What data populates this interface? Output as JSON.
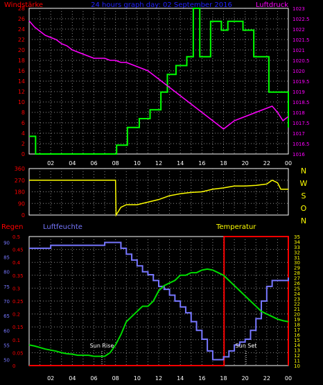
{
  "colors": {
    "background": "#000000",
    "frame": "#ffffff",
    "grid": "#8c8c8c",
    "wind": "#00ff00",
    "pressure": "#ff00ff",
    "direction": "#ffff00",
    "rain": "#ff0000",
    "humidity": "#7777ff",
    "temperature": "#00dd00",
    "sun_marker": "#ffffff",
    "title": "#2222ff",
    "compass": "#ffff00"
  },
  "header": {
    "wind_label": "Windstärke",
    "title": "24 hours graph day:  02 September 2016",
    "pressure_label": "Luftdruck"
  },
  "compass": {
    "letters": [
      "N",
      "W",
      "S",
      "O",
      "N"
    ]
  },
  "bottom_labels": {
    "rain": "Regen",
    "humidity": "Luftfeuchte",
    "temperature": "Temperatur"
  },
  "annotations": {
    "sun_rise": "Sun Rise",
    "sun_set": "Sun Set"
  },
  "chart_data": [
    {
      "type": "line",
      "xlabels": [
        "02",
        "04",
        "06",
        "08",
        "10",
        "12",
        "14",
        "16",
        "18",
        "20",
        "22",
        "00"
      ],
      "left_axis": {
        "ticks": [
          "28",
          "26",
          "24",
          "22",
          "20",
          "18",
          "16",
          "14",
          "12",
          "10",
          "8",
          "6",
          "4",
          "2",
          "0"
        ],
        "ylim": [
          0,
          28
        ]
      },
      "right_axis": {
        "ticks": [
          "1023",
          "1022.5",
          "1022",
          "1021.5",
          "1021",
          "1020.5",
          "1020",
          "1019.5",
          "1019",
          "1018.5",
          "1018",
          "1017.5",
          "1017",
          "1016.5",
          "1016"
        ],
        "ylim": [
          1016,
          1023
        ]
      },
      "grid": true,
      "series": [
        {
          "name": "Windstärke",
          "axis": "left",
          "step": true,
          "x": [
            0,
            0.2,
            0.6,
            8.0,
            8.1,
            9.0,
            9.1,
            10.0,
            10.2,
            11.0,
            11.2,
            12.0,
            12.2,
            12.6,
            12.8,
            13.4,
            13.6,
            14.4,
            14.6,
            15.0,
            15.2,
            15.6,
            15.8,
            16.6,
            16.8,
            17.6,
            17.8,
            18.2,
            18.4,
            19.6,
            19.8,
            20.6,
            20.8,
            21.8,
            22.2,
            23.9,
            24
          ],
          "y": [
            3.4,
            3.4,
            0,
            0,
            1.7,
            1.7,
            5.1,
            5.1,
            6.8,
            6.8,
            8.5,
            8.5,
            11.9,
            11.9,
            15.3,
            15.3,
            17.0,
            17.0,
            18.7,
            18.7,
            28,
            28,
            18.7,
            18.7,
            25.5,
            25.5,
            23.8,
            23.8,
            25.5,
            25.5,
            23.8,
            23.8,
            18.7,
            18.7,
            11.9,
            11.9,
            5.1
          ]
        },
        {
          "name": "Luftdruck",
          "axis": "right",
          "x": [
            0,
            0.5,
            1,
            1.5,
            2,
            2.5,
            3,
            3.5,
            4,
            4.5,
            5,
            5.5,
            6,
            6.5,
            7,
            7.5,
            8,
            8.5,
            9,
            9.5,
            10,
            10.5,
            11,
            11.5,
            12,
            12.5,
            13,
            13.5,
            14,
            14.5,
            15,
            15.5,
            16,
            16.5,
            17,
            17.5,
            18,
            18.5,
            19,
            19.5,
            20,
            20.5,
            21,
            21.5,
            22,
            22.5,
            23,
            23.5,
            24
          ],
          "y": [
            1022.4,
            1022.1,
            1021.9,
            1021.7,
            1021.6,
            1021.5,
            1021.3,
            1021.2,
            1021.0,
            1020.9,
            1020.8,
            1020.7,
            1020.6,
            1020.6,
            1020.6,
            1020.5,
            1020.5,
            1020.4,
            1020.4,
            1020.3,
            1020.2,
            1020.1,
            1020.0,
            1019.8,
            1019.6,
            1019.4,
            1019.2,
            1019.0,
            1018.8,
            1018.6,
            1018.4,
            1018.2,
            1018.0,
            1017.8,
            1017.6,
            1017.4,
            1017.2,
            1017.4,
            1017.6,
            1017.7,
            1017.8,
            1017.9,
            1018.0,
            1018.1,
            1018.2,
            1018.3,
            1018.0,
            1017.6,
            1017.8
          ]
        }
      ]
    },
    {
      "type": "line",
      "xlabels": [
        "02",
        "04",
        "06",
        "08",
        "10",
        "12",
        "14",
        "16",
        "18",
        "20",
        "22",
        "00"
      ],
      "left_axis": {
        "ticks": [
          "360",
          "270",
          "180",
          "90",
          "0"
        ],
        "ylim": [
          0,
          360
        ]
      },
      "grid": true,
      "series": [
        {
          "name": "Windrichtung",
          "axis": "left",
          "x": [
            0,
            0.2,
            8.0,
            8.05,
            8.5,
            9.0,
            10.0,
            11.0,
            12.0,
            13.0,
            14.0,
            15.0,
            16.0,
            17.0,
            18.0,
            19.0,
            20.0,
            21.0,
            22.0,
            22.5,
            23.0,
            23.3,
            24
          ],
          "y": [
            270,
            270,
            270,
            0,
            60,
            80,
            80,
            100,
            120,
            150,
            165,
            175,
            180,
            200,
            210,
            225,
            225,
            230,
            240,
            270,
            250,
            200,
            200
          ]
        }
      ]
    },
    {
      "type": "line",
      "xlabels": [
        "02",
        "04",
        "06",
        "08",
        "10",
        "12",
        "14",
        "16",
        "18",
        "20",
        "22",
        "00"
      ],
      "left_axis_rain": {
        "ticks": [
          "0.5",
          "0.45",
          "0.4",
          "0.35",
          "0.3",
          "0.25",
          "0.2",
          "0.15",
          "0.1",
          "0.05",
          "0"
        ],
        "ylim": [
          0,
          0.5
        ]
      },
      "left_axis_humidity": {
        "ticks": [
          "90",
          "85",
          "80",
          "75",
          "70",
          "65",
          "60",
          "55",
          "50"
        ],
        "ylim": [
          48,
          92
        ]
      },
      "right_axis": {
        "ticks": [
          "35",
          "34",
          "33",
          "32",
          "31",
          "30",
          "29",
          "28",
          "27",
          "26",
          "25",
          "24",
          "23",
          "22",
          "21",
          "20",
          "19",
          "18",
          "17",
          "16",
          "15",
          "14",
          "13",
          "12",
          "11",
          "10"
        ],
        "ylim": [
          10,
          35
        ]
      },
      "grid": true,
      "series": [
        {
          "name": "Regen",
          "axis": "rain",
          "step": true,
          "x": [
            0,
            18.0,
            18.05,
            23.9,
            24
          ],
          "y": [
            0,
            0,
            0.5,
            0.5,
            0
          ]
        },
        {
          "name": "Luftfeuchte",
          "axis": "humidity",
          "step": true,
          "x": [
            0,
            1.0,
            2.0,
            3.0,
            4.0,
            5.0,
            6.0,
            6.5,
            7.0,
            7.5,
            8.0,
            8.5,
            9.0,
            9.5,
            10.0,
            10.5,
            11.0,
            11.5,
            12.0,
            12.5,
            13.0,
            13.5,
            14.0,
            14.5,
            15.0,
            15.5,
            16.0,
            16.5,
            17.0,
            17.5,
            18.0,
            18.5,
            19.0,
            19.5,
            20.0,
            20.5,
            21.0,
            21.5,
            22.0,
            22.5,
            23.0,
            23.5,
            24
          ],
          "y": [
            88,
            88,
            89,
            89,
            89,
            89,
            89,
            89,
            90,
            90,
            90,
            88,
            86,
            84,
            82,
            80,
            79,
            77,
            75,
            74,
            72,
            70,
            68,
            66,
            63,
            60,
            57,
            53,
            50,
            50,
            51,
            53,
            55,
            56,
            57,
            60,
            64,
            70,
            75,
            77,
            77,
            77,
            78
          ]
        },
        {
          "name": "Temperatur",
          "axis": "right",
          "x": [
            0,
            0.5,
            1,
            1.5,
            2,
            2.5,
            3,
            3.5,
            4,
            4.5,
            5,
            5.5,
            6,
            6.5,
            7,
            7.5,
            8,
            8.5,
            9,
            9.5,
            10,
            10.5,
            11,
            11.5,
            12,
            12.5,
            13,
            13.5,
            14,
            14.5,
            15,
            15.5,
            16,
            16.5,
            17,
            17.5,
            18,
            18.5,
            19,
            19.5,
            20,
            20.5,
            21,
            21.5,
            22,
            22.5,
            23,
            23.5,
            24
          ],
          "y": [
            14.0,
            13.8,
            13.5,
            13.2,
            13.0,
            12.8,
            12.5,
            12.3,
            12.2,
            12.0,
            12.0,
            12.0,
            11.8,
            11.8,
            11.8,
            12.5,
            14,
            16,
            18.5,
            19.5,
            20.5,
            21.5,
            21.5,
            22.5,
            24.5,
            25.5,
            26,
            26.5,
            27.5,
            27.5,
            28,
            28,
            28.5,
            28.7,
            28.5,
            28,
            27.5,
            26.5,
            25.5,
            24.5,
            23.5,
            22.5,
            21.5,
            20.5,
            20,
            19.5,
            19,
            18.7,
            18.5
          ]
        }
      ]
    }
  ]
}
